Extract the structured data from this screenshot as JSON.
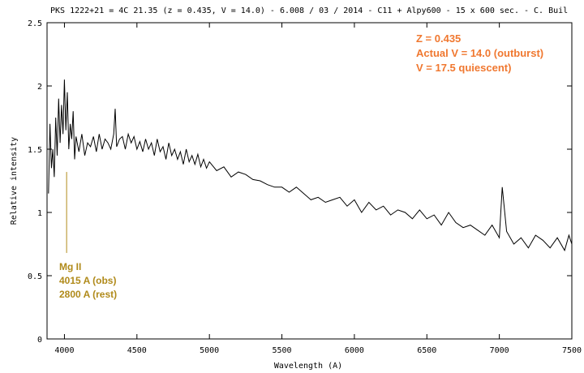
{
  "chart_data": {
    "type": "line",
    "title": "PKS 1222+21 = 4C 21.35 (z = 0.435, V = 14.0) - 6.008 / 03 / 2014 - C11 + Alpy600 - 15 x 600 sec. - C. Buil",
    "xlabel": "Wavelength (A)",
    "ylabel": "Relative intensity",
    "xlim": [
      3880,
      7500
    ],
    "ylim": [
      0,
      2.5
    ],
    "x_ticks": [
      "4000",
      "4500",
      "5000",
      "5500",
      "6000",
      "6500",
      "7000",
      "7500"
    ],
    "y_ticks": [
      "0",
      "0.5",
      "1",
      "1.5",
      "2",
      "2.5"
    ],
    "grid": false,
    "legend": "none",
    "line_color": "#000000",
    "series": [
      {
        "x": [
          3890,
          3900,
          3910,
          3920,
          3930,
          3940,
          3950,
          3960,
          3970,
          3980,
          3990,
          4000,
          4010,
          4020,
          4030,
          4040,
          4050,
          4060,
          4070,
          4080,
          4100,
          4120,
          4140,
          4160,
          4180,
          4200,
          4220,
          4240,
          4260,
          4280,
          4300,
          4320,
          4340,
          4350,
          4360,
          4380,
          4400,
          4420,
          4440,
          4460,
          4480,
          4500,
          4520,
          4540,
          4560,
          4580,
          4600,
          4620,
          4640,
          4660,
          4680,
          4700,
          4720,
          4740,
          4760,
          4780,
          4800,
          4820,
          4840,
          4860,
          4880,
          4900,
          4920,
          4940,
          4960,
          4980,
          5000,
          5050,
          5100,
          5150,
          5200,
          5250,
          5300,
          5350,
          5400,
          5450,
          5500,
          5550,
          5600,
          5650,
          5700,
          5750,
          5800,
          5850,
          5900,
          5950,
          6000,
          6050,
          6100,
          6150,
          6200,
          6250,
          6300,
          6350,
          6400,
          6450,
          6500,
          6550,
          6600,
          6650,
          6700,
          6750,
          6800,
          6850,
          6900,
          6950,
          7000,
          7020,
          7050,
          7100,
          7150,
          7200,
          7250,
          7300,
          7350,
          7400,
          7450,
          7480,
          7500
        ],
        "y": [
          1.15,
          1.7,
          1.35,
          1.5,
          1.28,
          1.75,
          1.45,
          1.9,
          1.55,
          1.85,
          1.62,
          2.05,
          1.65,
          1.95,
          1.5,
          1.7,
          1.58,
          1.8,
          1.42,
          1.6,
          1.48,
          1.62,
          1.45,
          1.55,
          1.52,
          1.6,
          1.48,
          1.62,
          1.5,
          1.58,
          1.55,
          1.5,
          1.62,
          1.82,
          1.52,
          1.58,
          1.6,
          1.5,
          1.62,
          1.55,
          1.6,
          1.5,
          1.56,
          1.48,
          1.58,
          1.5,
          1.55,
          1.45,
          1.58,
          1.48,
          1.52,
          1.42,
          1.55,
          1.45,
          1.5,
          1.42,
          1.48,
          1.38,
          1.5,
          1.4,
          1.45,
          1.38,
          1.46,
          1.36,
          1.42,
          1.35,
          1.4,
          1.33,
          1.36,
          1.28,
          1.32,
          1.3,
          1.26,
          1.25,
          1.22,
          1.2,
          1.2,
          1.16,
          1.2,
          1.15,
          1.1,
          1.12,
          1.08,
          1.1,
          1.12,
          1.05,
          1.1,
          1.0,
          1.08,
          1.02,
          1.05,
          0.98,
          1.02,
          1.0,
          0.95,
          1.02,
          0.95,
          0.98,
          0.9,
          1.0,
          0.92,
          0.88,
          0.9,
          0.86,
          0.82,
          0.9,
          0.8,
          1.2,
          0.85,
          0.75,
          0.8,
          0.72,
          0.82,
          0.78,
          0.72,
          0.8,
          0.7,
          0.82,
          0.75
        ]
      }
    ],
    "annotations": {
      "line1": "Z = 0.435",
      "line2": "Actual V = 14.0 (outburst)",
      "line3": "V = 17.5 quiescent)",
      "mg_name": "Mg II",
      "mg_obs": "4015 A (obs)",
      "mg_rest": "2800 A (rest)",
      "mg_marker_x": 4015,
      "mg_marker_y": [
        0.68,
        1.32
      ],
      "orange": "#f07830",
      "gold": "#b08a1a"
    }
  }
}
